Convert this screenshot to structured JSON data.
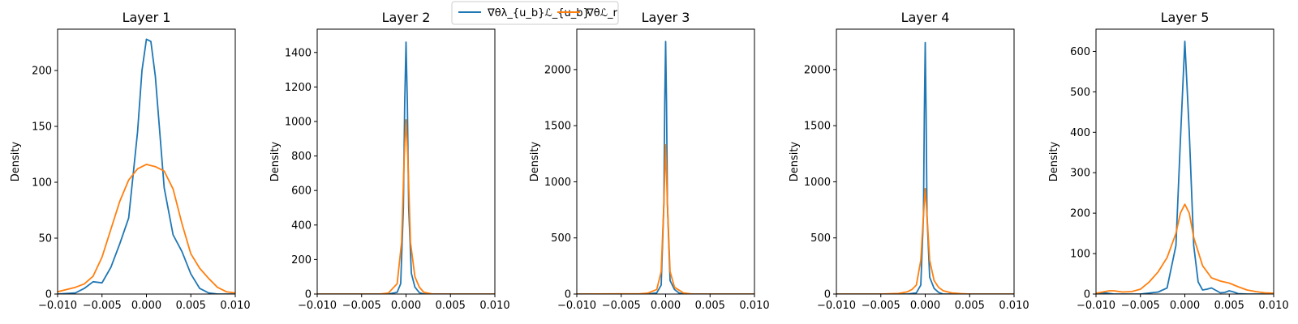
{
  "legend": {
    "entries": [
      {
        "label": "∇θλ_{u_b}ℒ_{u_b}",
        "color": "#1f77b4"
      },
      {
        "label": "∇θℒ_r",
        "color": "#ff7f0e"
      }
    ],
    "placement": "top-center"
  },
  "chart_data": [
    {
      "type": "line",
      "title": "Layer 1",
      "xlabel": "",
      "ylabel": "Density",
      "xlim": [
        -0.01,
        0.01
      ],
      "ylim": [
        0,
        237
      ],
      "xticks": [
        "−0.010",
        "−0.005",
        "0.000",
        "0.005",
        "0.010"
      ],
      "yticks": [
        0,
        50,
        100,
        150,
        200
      ],
      "grid": false,
      "series": [
        {
          "name": "∇θλ_{u_b}ℒ_{u_b}",
          "color": "#1f77b4",
          "x": [
            -0.01,
            -0.008,
            -0.007,
            -0.006,
            -0.005,
            -0.004,
            -0.003,
            -0.002,
            -0.001,
            -0.0005,
            0.0,
            0.0005,
            0.001,
            0.002,
            0.003,
            0.004,
            0.005,
            0.006,
            0.007,
            0.008,
            0.01
          ],
          "y": [
            0,
            1,
            5,
            11,
            10,
            24,
            45,
            68,
            145,
            200,
            228,
            226,
            195,
            95,
            53,
            38,
            18,
            5,
            1,
            0,
            0
          ]
        },
        {
          "name": "∇θℒ_r",
          "color": "#ff7f0e",
          "x": [
            -0.01,
            -0.008,
            -0.007,
            -0.006,
            -0.005,
            -0.004,
            -0.003,
            -0.002,
            -0.001,
            0.0,
            0.001,
            0.002,
            0.003,
            0.004,
            0.005,
            0.006,
            0.007,
            0.008,
            0.009,
            0.01
          ],
          "y": [
            2,
            6,
            9,
            16,
            33,
            58,
            83,
            102,
            112,
            116,
            114,
            110,
            94,
            63,
            36,
            23,
            14,
            6,
            2,
            1
          ]
        }
      ]
    },
    {
      "type": "line",
      "title": "Layer 2",
      "xlabel": "",
      "ylabel": "Density",
      "xlim": [
        -0.01,
        0.01
      ],
      "ylim": [
        0,
        1535
      ],
      "xticks": [
        "−0.010",
        "−0.005",
        "0.000",
        "0.005",
        "0.010"
      ],
      "yticks": [
        0,
        200,
        400,
        600,
        800,
        1000,
        1200,
        1400
      ],
      "grid": false,
      "series": [
        {
          "name": "∇θλ_{u_b}ℒ_{u_b}",
          "color": "#1f77b4",
          "x": [
            -0.01,
            -0.002,
            -0.001,
            -0.0006,
            -0.0003,
            -0.00015,
            0.0,
            0.00015,
            0.0003,
            0.0006,
            0.001,
            0.0015,
            0.002,
            0.01
          ],
          "y": [
            0,
            0,
            10,
            60,
            500,
            1100,
            1460,
            1100,
            500,
            120,
            40,
            8,
            0,
            0
          ]
        },
        {
          "name": "∇θℒ_r",
          "color": "#ff7f0e",
          "x": [
            -0.01,
            -0.003,
            -0.002,
            -0.001,
            -0.0005,
            -0.0002,
            0.0,
            0.0002,
            0.0005,
            0.001,
            0.0015,
            0.002,
            0.003,
            0.01
          ],
          "y": [
            0,
            0,
            5,
            60,
            300,
            800,
            1010,
            800,
            300,
            100,
            40,
            10,
            0,
            0
          ]
        }
      ]
    },
    {
      "type": "line",
      "title": "Layer 3",
      "xlabel": "",
      "ylabel": "Density",
      "xlim": [
        -0.01,
        0.01
      ],
      "ylim": [
        0,
        2360
      ],
      "xticks": [
        "−0.010",
        "−0.005",
        "0.000",
        "0.005",
        "0.010"
      ],
      "yticks": [
        0,
        500,
        1000,
        1500,
        2000
      ],
      "grid": false,
      "series": [
        {
          "name": "∇θλ_{u_b}ℒ_{u_b}",
          "color": "#1f77b4",
          "x": [
            -0.01,
            -0.002,
            -0.001,
            -0.0005,
            -0.0002,
            -0.0001,
            0.0,
            0.0001,
            0.0002,
            0.0005,
            0.001,
            0.0015,
            0.002,
            0.01
          ],
          "y": [
            0,
            0,
            10,
            80,
            800,
            1700,
            2250,
            1700,
            800,
            120,
            40,
            10,
            0,
            0
          ]
        },
        {
          "name": "∇θℒ_r",
          "color": "#ff7f0e",
          "x": [
            -0.01,
            -0.003,
            -0.002,
            -0.001,
            -0.0005,
            -0.0002,
            0.0,
            0.0002,
            0.0005,
            0.001,
            0.002,
            0.003,
            0.01
          ],
          "y": [
            0,
            2,
            8,
            40,
            200,
            800,
            1330,
            800,
            200,
            60,
            10,
            0,
            0
          ]
        }
      ]
    },
    {
      "type": "line",
      "title": "Layer 4",
      "xlabel": "",
      "ylabel": "Density",
      "xlim": [
        -0.01,
        0.01
      ],
      "ylim": [
        0,
        2360
      ],
      "xticks": [
        "−0.010",
        "−0.005",
        "0.000",
        "0.005",
        "0.010"
      ],
      "yticks": [
        0,
        500,
        1000,
        1500,
        2000
      ],
      "grid": false,
      "series": [
        {
          "name": "∇θλ_{u_b}ℒ_{u_b}",
          "color": "#1f77b4",
          "x": [
            -0.01,
            -0.002,
            -0.001,
            -0.0005,
            -0.0002,
            -0.0001,
            0.0,
            0.0001,
            0.0002,
            0.0005,
            0.001,
            0.0015,
            0.002,
            0.01
          ],
          "y": [
            0,
            0,
            10,
            80,
            700,
            1600,
            2240,
            1600,
            700,
            150,
            50,
            15,
            0,
            0
          ]
        },
        {
          "name": "∇θℒ_r",
          "color": "#ff7f0e",
          "x": [
            -0.01,
            -0.005,
            -0.003,
            -0.002,
            -0.0015,
            -0.001,
            -0.0005,
            -0.0002,
            0.0,
            0.0002,
            0.0005,
            0.001,
            0.0015,
            0.002,
            0.003,
            0.004,
            0.005,
            0.01
          ],
          "y": [
            0,
            0,
            5,
            20,
            40,
            80,
            300,
            700,
            940,
            700,
            300,
            120,
            60,
            30,
            10,
            3,
            0,
            0
          ]
        }
      ]
    },
    {
      "type": "line",
      "title": "Layer 5",
      "xlabel": "",
      "ylabel": "Density",
      "xlim": [
        -0.01,
        0.01
      ],
      "ylim": [
        0,
        655
      ],
      "xticks": [
        "−0.010",
        "−0.005",
        "0.000",
        "0.005",
        "0.010"
      ],
      "yticks": [
        0,
        100,
        200,
        300,
        400,
        500,
        600
      ],
      "grid": false,
      "series": [
        {
          "name": "∇θλ_{u_b}ℒ_{u_b}",
          "color": "#1f77b4",
          "x": [
            -0.01,
            -0.009,
            -0.008,
            -0.007,
            -0.005,
            -0.003,
            -0.002,
            -0.001,
            -0.0005,
            0.0,
            0.0005,
            0.001,
            0.0015,
            0.002,
            0.0025,
            0.003,
            0.004,
            0.0045,
            0.005,
            0.0055,
            0.006,
            0.007,
            0.01
          ],
          "y": [
            0,
            3,
            0,
            0,
            0,
            5,
            15,
            120,
            380,
            625,
            400,
            120,
            30,
            10,
            12,
            15,
            3,
            4,
            8,
            5,
            1,
            0,
            0
          ]
        },
        {
          "name": "∇θℒ_r",
          "color": "#ff7f0e",
          "x": [
            -0.01,
            -0.009,
            -0.0085,
            -0.008,
            -0.007,
            -0.006,
            -0.005,
            -0.004,
            -0.003,
            -0.002,
            -0.001,
            -0.0005,
            0.0,
            0.0005,
            0.001,
            0.002,
            0.003,
            0.004,
            0.005,
            0.006,
            0.007,
            0.008,
            0.009,
            0.01
          ],
          "y": [
            2,
            6,
            8,
            8,
            5,
            6,
            12,
            30,
            55,
            90,
            150,
            200,
            222,
            200,
            140,
            70,
            40,
            32,
            27,
            18,
            10,
            6,
            3,
            2
          ]
        }
      ]
    }
  ]
}
